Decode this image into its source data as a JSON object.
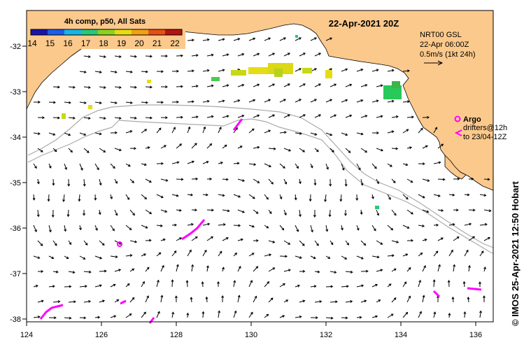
{
  "map": {
    "title": "22-Apr-2021 20Z",
    "legend_title": "4h comp, p50, All Sats",
    "colorbar_ticks": [
      "14",
      "15",
      "16",
      "17",
      "18",
      "19",
      "20",
      "21",
      "22"
    ],
    "colorbar_colors": [
      "#1a14a8",
      "#1f5ce8",
      "#19b4e6",
      "#28c878",
      "#8cd21e",
      "#e6dc14",
      "#f0a014",
      "#e65014",
      "#b4140f"
    ],
    "lon_ticks": [
      "124",
      "126",
      "128",
      "130",
      "132",
      "134",
      "136"
    ],
    "lat_ticks": [
      "-32",
      "-33",
      "-34",
      "-35",
      "-36",
      "-37",
      "-38"
    ],
    "current_info": {
      "line1": "NRT00 GSL",
      "line2": "22-Apr 06:00Z",
      "line3": "0.5m/s (1kt 24h)"
    },
    "argo_label": "Argo",
    "drifters_line1": "drifters@12h",
    "drifters_line2": "to 23/04-12Z",
    "credit": "© IMOS 25-Apr-2021 12:50 Hobart",
    "land_color": "#fcc98c",
    "argo_color": "#ff00ff"
  }
}
